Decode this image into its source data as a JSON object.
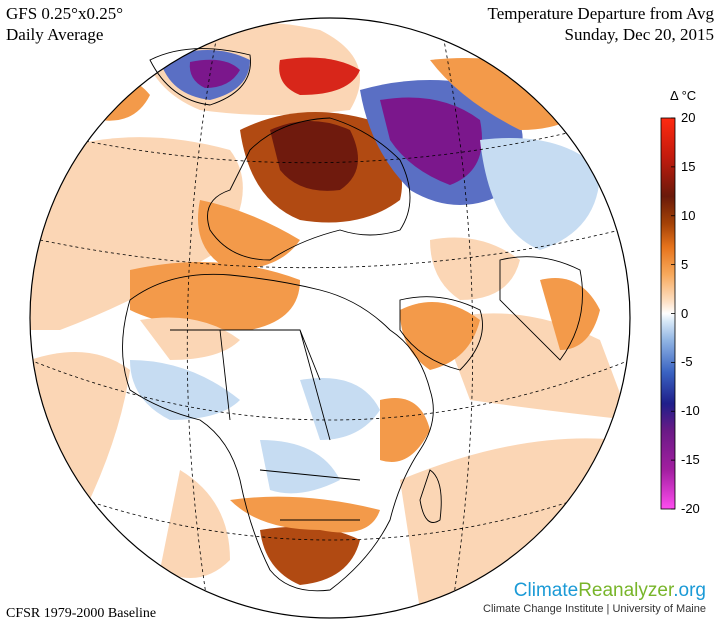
{
  "header": {
    "model": "GFS 0.25°x0.25°",
    "period": "Daily Average",
    "variable": "Temperature Departure from Avg",
    "date": "Sunday, Dec 20, 2015"
  },
  "footer": {
    "baseline": "CFSR 1979-2000 Baseline",
    "brand_part1": "Climate",
    "brand_part2": "Reanalyzer",
    "brand_part3": ".org",
    "institute": "Climate Change Institute | University of Maine"
  },
  "legend": {
    "unit": "Δ °C",
    "ticks": [
      "20",
      "15",
      "10",
      "5",
      "0",
      "-5",
      "-10",
      "-15",
      "-20"
    ],
    "range": [
      -20,
      20
    ],
    "colors": [
      "#ff4df0",
      "#a21fa0",
      "#6a1a86",
      "#1f1f8a",
      "#3a63c2",
      "#8fb3e3",
      "#d7e8f7",
      "#ffffff",
      "#fde0c5",
      "#f7a95c",
      "#e6731c",
      "#a44207",
      "#6a1a0a",
      "#c21b0e",
      "#ff2a10"
    ]
  },
  "map": {
    "projection": "orthographic",
    "colors": {
      "ocean": "#ffffff",
      "warm_light": "#fbd6b5",
      "warm_med": "#f39a4a",
      "warm_strong": "#b14a12",
      "warm_dark": "#6f1a0d",
      "warm_red": "#d8261a",
      "cool_light": "#c6dcf2",
      "cool_med": "#5a6fc4",
      "cool_strong": "#2b2791",
      "cool_purple": "#7b178c",
      "border": "#000000"
    }
  }
}
